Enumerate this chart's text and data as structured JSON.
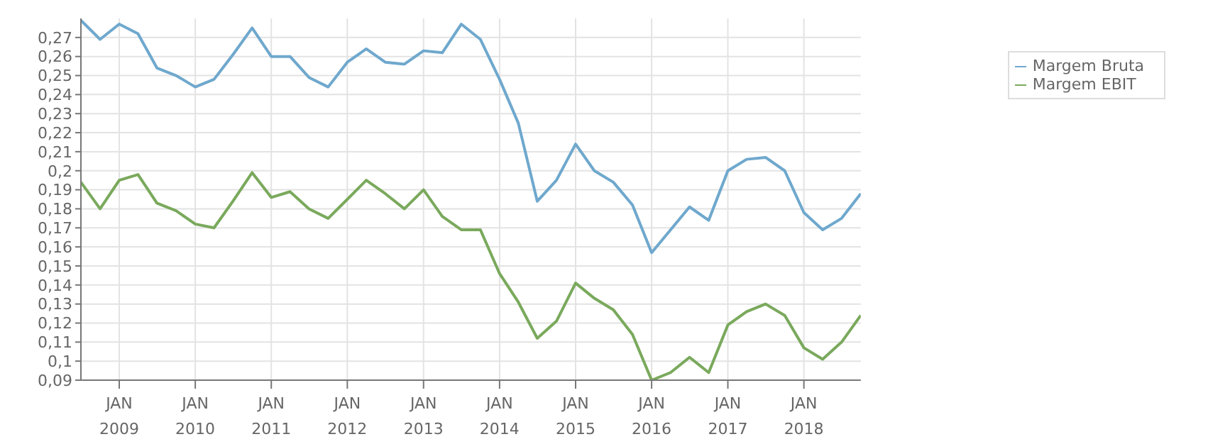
{
  "chart_data": {
    "type": "line",
    "x": [
      "2008-07",
      "2008-10",
      "2009-01",
      "2009-04",
      "2009-07",
      "2009-10",
      "2010-01",
      "2010-04",
      "2010-07",
      "2010-10",
      "2011-01",
      "2011-04",
      "2011-07",
      "2011-10",
      "2012-01",
      "2012-04",
      "2012-07",
      "2012-10",
      "2013-01",
      "2013-04",
      "2013-07",
      "2013-10",
      "2014-01",
      "2014-04",
      "2014-07",
      "2014-10",
      "2015-01",
      "2015-04",
      "2015-07",
      "2015-10",
      "2016-01",
      "2016-04",
      "2016-07",
      "2016-10",
      "2017-01",
      "2017-04",
      "2017-07",
      "2017-10",
      "2018-01",
      "2018-04",
      "2018-07",
      "2018-10"
    ],
    "series": [
      {
        "name": "Margem Bruta",
        "color": "#6fa8cd",
        "values": [
          0.279,
          0.269,
          0.277,
          0.272,
          0.254,
          0.25,
          0.244,
          0.248,
          0.261,
          0.275,
          0.26,
          0.26,
          0.249,
          0.244,
          0.257,
          0.264,
          0.257,
          0.256,
          0.263,
          0.262,
          0.277,
          0.269,
          0.248,
          0.225,
          0.184,
          0.195,
          0.214,
          0.2,
          0.194,
          0.182,
          0.157,
          0.169,
          0.181,
          0.174,
          0.2,
          0.206,
          0.207,
          0.2,
          0.178,
          0.169,
          0.175,
          0.188
        ]
      },
      {
        "name": "Margem EBIT",
        "color": "#7aa95c",
        "values": [
          0.194,
          0.18,
          0.195,
          0.198,
          0.183,
          0.179,
          0.172,
          0.17,
          0.184,
          0.199,
          0.186,
          0.189,
          0.18,
          0.175,
          0.185,
          0.195,
          0.188,
          0.18,
          0.19,
          0.176,
          0.169,
          0.169,
          0.146,
          0.131,
          0.112,
          0.121,
          0.141,
          0.133,
          0.127,
          0.114,
          0.09,
          0.094,
          0.102,
          0.094,
          0.119,
          0.126,
          0.13,
          0.124,
          0.107,
          0.101,
          0.11,
          0.124
        ]
      }
    ],
    "xlim": [
      "2008-07",
      "2018-10"
    ],
    "xticks": [
      {
        "value": "2009-01",
        "label": "JAN\n2009"
      },
      {
        "value": "2010-01",
        "label": "JAN\n2010"
      },
      {
        "value": "2011-01",
        "label": "JAN\n2011"
      },
      {
        "value": "2012-01",
        "label": "JAN\n2012"
      },
      {
        "value": "2013-01",
        "label": "JAN\n2013"
      },
      {
        "value": "2014-01",
        "label": "JAN\n2014"
      },
      {
        "value": "2015-01",
        "label": "JAN\n2015"
      },
      {
        "value": "2016-01",
        "label": "JAN\n2016"
      },
      {
        "value": "2017-01",
        "label": "JAN\n2017"
      },
      {
        "value": "2018-01",
        "label": "JAN\n2018"
      }
    ],
    "ylim": [
      0.09,
      0.28
    ],
    "yticks": [
      {
        "value": 0.09,
        "label": "0,09"
      },
      {
        "value": 0.1,
        "label": "0,1"
      },
      {
        "value": 0.11,
        "label": "0,11"
      },
      {
        "value": 0.12,
        "label": "0,12"
      },
      {
        "value": 0.13,
        "label": "0,13"
      },
      {
        "value": 0.14,
        "label": "0,14"
      },
      {
        "value": 0.15,
        "label": "0,15"
      },
      {
        "value": 0.16,
        "label": "0,16"
      },
      {
        "value": 0.17,
        "label": "0,17"
      },
      {
        "value": 0.18,
        "label": "0,18"
      },
      {
        "value": 0.19,
        "label": "0,19"
      },
      {
        "value": 0.2,
        "label": "0,2"
      },
      {
        "value": 0.21,
        "label": "0,21"
      },
      {
        "value": 0.22,
        "label": "0,22"
      },
      {
        "value": 0.23,
        "label": "0,23"
      },
      {
        "value": 0.24,
        "label": "0,24"
      },
      {
        "value": 0.25,
        "label": "0,25"
      },
      {
        "value": 0.26,
        "label": "0,26"
      },
      {
        "value": 0.27,
        "label": "0,27"
      }
    ],
    "grid": true,
    "legend": "top right",
    "marker": "none",
    "line_style": "solid"
  }
}
